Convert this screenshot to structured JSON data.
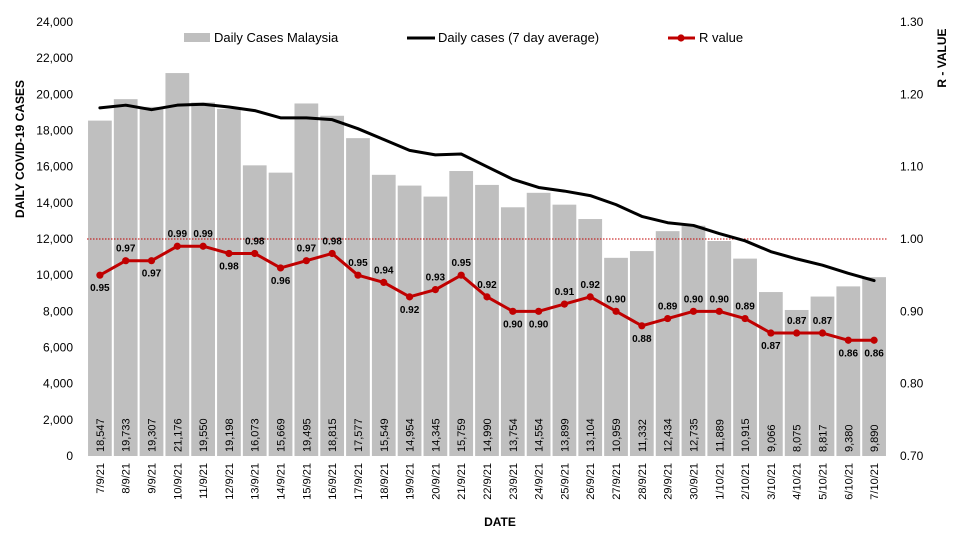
{
  "chart_data": {
    "type": "bar",
    "title": "",
    "xlabel": "DATE",
    "ylabel": "DAILY COVID-19 CASES",
    "y2label": "R - VALUE",
    "ylim": [
      0,
      24000
    ],
    "y2lim": [
      0.7,
      1.3
    ],
    "yticks": [
      "0",
      "2,000",
      "4,000",
      "6,000",
      "8,000",
      "10,000",
      "12,000",
      "14,000",
      "16,000",
      "18,000",
      "20,000",
      "22,000",
      "24,000"
    ],
    "y2ticks": [
      "0.70",
      "0.80",
      "0.90",
      "1.00",
      "1.10",
      "1.20",
      "1.30"
    ],
    "reference_line": 1.0,
    "legend_position": "top",
    "categories": [
      "7/9/21",
      "8/9/21",
      "9/9/21",
      "10/9/21",
      "11/9/21",
      "12/9/21",
      "13/9/21",
      "14/9/21",
      "15/9/21",
      "16/9/21",
      "17/9/21",
      "18/9/21",
      "19/9/21",
      "20/9/21",
      "21/9/21",
      "22/9/21",
      "23/9/21",
      "24/9/21",
      "25/9/21",
      "26/9/21",
      "27/9/21",
      "28/9/21",
      "29/9/21",
      "30/9/21",
      "1/10/21",
      "2/10/21",
      "3/10/21",
      "4/10/21",
      "5/10/21",
      "6/10/21",
      "7/10/21"
    ],
    "series": [
      {
        "name": "Daily Cases Malaysia",
        "type": "bar",
        "color": "#bfbfbf",
        "values": [
          18547,
          19733,
          19307,
          21176,
          19550,
          19198,
          16073,
          15669,
          19495,
          18815,
          17577,
          15549,
          14954,
          14345,
          15759,
          14990,
          13754,
          14554,
          13899,
          13104,
          10959,
          11332,
          12434,
          12735,
          11889,
          10915,
          9066,
          8075,
          8817,
          9380,
          9890
        ],
        "labels": [
          "18,547",
          "19,733",
          "19,307",
          "21,176",
          "19,550",
          "19,198",
          "16,073",
          "15,669",
          "19,495",
          "18,815",
          "17,577",
          "15,549",
          "14,954",
          "14,345",
          "15,759",
          "14,990",
          "13,754",
          "14,554",
          "13,899",
          "13,104",
          "10,959",
          "11,332",
          "12,434",
          "12,735",
          "11,889",
          "10,915",
          "9,066",
          "8,075",
          "8,817",
          "9,380",
          "9,890"
        ]
      },
      {
        "name": "Daily cases (7 day average)",
        "type": "line",
        "color": "#000000",
        "values": [
          19250,
          19400,
          19150,
          19400,
          19450,
          19300,
          19100,
          18700,
          18700,
          18600,
          18100,
          17500,
          16900,
          16650,
          16700,
          16000,
          15300,
          14850,
          14650,
          14400,
          13900,
          13250,
          12900,
          12750,
          12300,
          11900,
          11300,
          10900,
          10550,
          10100,
          9700
        ]
      },
      {
        "name": "R value",
        "type": "line",
        "axis": "right",
        "color": "#c00000",
        "values": [
          0.95,
          0.97,
          0.97,
          0.99,
          0.99,
          0.98,
          0.98,
          0.96,
          0.97,
          0.98,
          0.95,
          0.94,
          0.92,
          0.93,
          0.95,
          0.92,
          0.9,
          0.9,
          0.91,
          0.92,
          0.9,
          0.88,
          0.89,
          0.9,
          0.9,
          0.89,
          0.87,
          0.87,
          0.87,
          0.86,
          0.86
        ],
        "labels": [
          "0.95",
          "0.97",
          "0.97",
          "0.99",
          "0.99",
          "0.98",
          "0.98",
          "0.96",
          "0.97",
          "0.98",
          "0.95",
          "0.94",
          "0.92",
          "0.93",
          "0.95",
          "0.92",
          "0.90",
          "0.90",
          "0.91",
          "0.92",
          "0.90",
          "0.88",
          "0.89",
          "0.90",
          "0.90",
          "0.89",
          "0.87",
          "0.87",
          "0.87",
          "0.86",
          "0.86"
        ]
      }
    ]
  }
}
